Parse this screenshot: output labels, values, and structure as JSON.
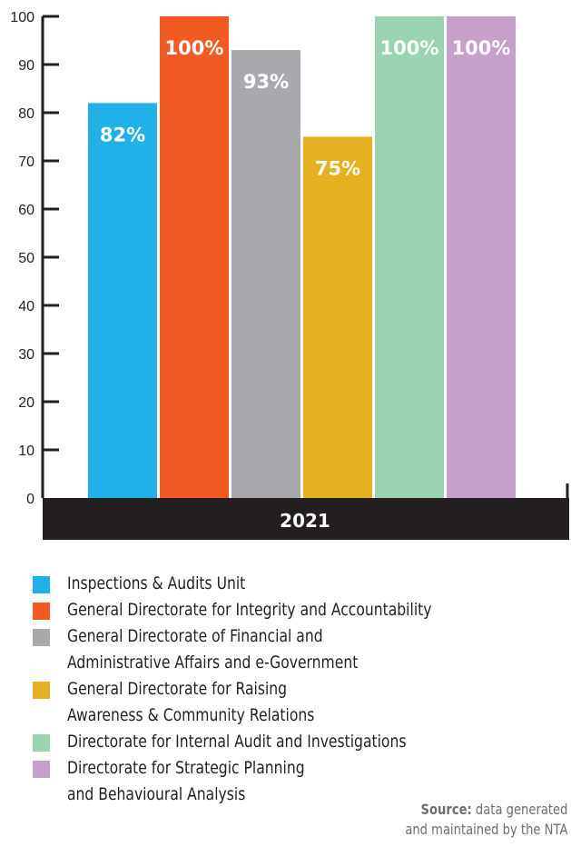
{
  "chart_data": {
    "type": "bar",
    "categories": [
      "2021"
    ],
    "series": [
      {
        "name": "Inspections & Audits Unit",
        "values": [
          82
        ],
        "label": "82%",
        "color": "#20b1e8"
      },
      {
        "name": "General Directorate for Integrity and Accountability",
        "values": [
          100
        ],
        "label": "100%",
        "color": "#f15a22"
      },
      {
        "name": "General Directorate of Financial and Administrative Affairs and e-Government",
        "values": [
          93
        ],
        "label": "93%",
        "color": "#a7a9ac"
      },
      {
        "name": "General Directorate for Raising Awareness & Community Relations",
        "values": [
          75
        ],
        "label": "75%",
        "color": "#e5b022"
      },
      {
        "name": "Directorate for Internal Audit and Investigations",
        "values": [
          100
        ],
        "label": "100%",
        "color": "#99d3b0"
      },
      {
        "name": "Directorate for Strategic Planning and Behavioural Analysis",
        "values": [
          100
        ],
        "label": "100%",
        "color": "#c6a0cb"
      }
    ],
    "yticks": [
      0,
      10,
      20,
      30,
      40,
      50,
      60,
      70,
      80,
      90,
      100
    ],
    "ylim": [
      0,
      100
    ],
    "xlabel": "",
    "ylabel": "",
    "grid": false,
    "legend_position": "bottom"
  },
  "legend": [
    {
      "lines": [
        "Inspections & Audits Unit"
      ],
      "color": "#20b1e8"
    },
    {
      "lines": [
        "General Directorate for Integrity and Accountability"
      ],
      "color": "#f15a22"
    },
    {
      "lines": [
        "General Directorate of Financial and",
        "Administrative Affairs and e-Government"
      ],
      "color": "#a7a9ac"
    },
    {
      "lines": [
        "General Directorate for Raising",
        "Awareness & Community Relations"
      ],
      "color": "#e5b022"
    },
    {
      "lines": [
        "Directorate for Internal Audit and Investigations"
      ],
      "color": "#99d3b0"
    },
    {
      "lines": [
        "Directorate for Strategic Planning",
        "and Behavioural Analysis"
      ],
      "color": "#c6a0cb"
    }
  ],
  "source": {
    "label": "Source:",
    "text_line1": "data generated",
    "text_line2": "and maintained by the NTA"
  }
}
